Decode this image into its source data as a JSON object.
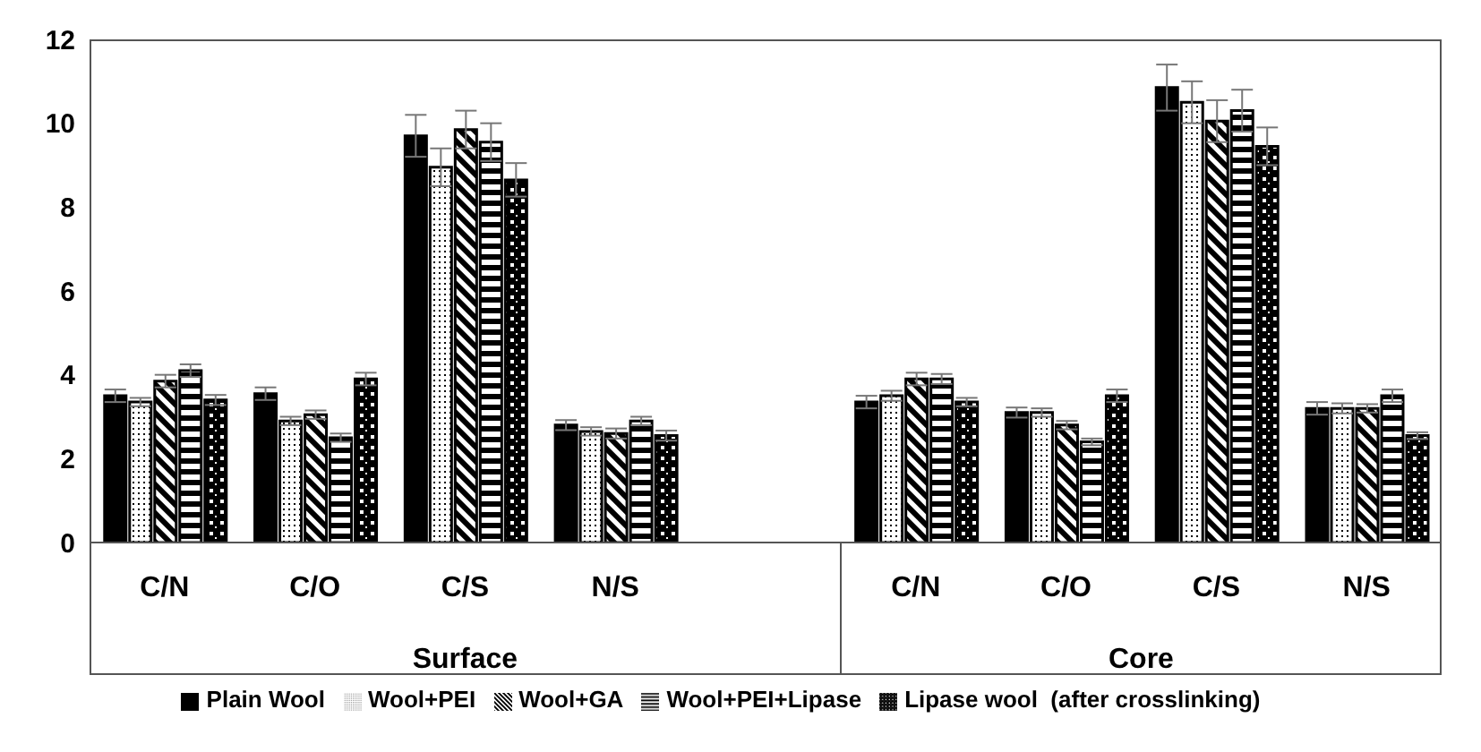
{
  "chart_data": {
    "type": "bar",
    "categories": [
      "C/N",
      "C/O",
      "C/S",
      "N/S",
      null,
      "C/N",
      "C/O",
      "C/S",
      "N/S"
    ],
    "annotations": [
      "Surface",
      "Core"
    ],
    "series": [
      {
        "name": "Plain Wool",
        "color": "#000000",
        "values": [
          3.5,
          3.55,
          9.7,
          2.8,
          null,
          3.35,
          3.1,
          10.85,
          3.2
        ],
        "errors": [
          0.15,
          0.15,
          0.5,
          0.12,
          null,
          0.15,
          0.12,
          0.55,
          0.15
        ]
      },
      {
        "name": "Wool+PEI",
        "color": "#000000",
        "values": [
          3.35,
          2.9,
          8.95,
          2.65,
          null,
          3.5,
          3.1,
          10.5,
          3.2
        ],
        "errors": [
          0.1,
          0.1,
          0.45,
          0.1,
          null,
          0.12,
          0.1,
          0.5,
          0.12
        ]
      },
      {
        "name": "Wool+GA",
        "color": "#000000",
        "values": [
          3.85,
          3.05,
          9.85,
          2.6,
          null,
          3.9,
          2.8,
          10.05,
          3.2
        ],
        "errors": [
          0.15,
          0.1,
          0.45,
          0.12,
          null,
          0.15,
          0.1,
          0.5,
          0.1
        ]
      },
      {
        "name": "Wool+PEI+Lipase",
        "color": "#000000",
        "values": [
          4.1,
          2.5,
          9.55,
          2.9,
          null,
          3.9,
          2.4,
          10.3,
          3.5
        ],
        "errors": [
          0.15,
          0.1,
          0.45,
          0.1,
          null,
          0.12,
          0.08,
          0.5,
          0.15
        ]
      },
      {
        "name": "Lipase wool  (after crosslinking)",
        "color": "#000000",
        "values": [
          3.4,
          3.9,
          8.65,
          2.55,
          null,
          3.35,
          3.5,
          9.45,
          2.55
        ],
        "errors": [
          0.12,
          0.15,
          0.4,
          0.12,
          null,
          0.1,
          0.15,
          0.45,
          0.08
        ]
      }
    ],
    "ylim": [
      0,
      12
    ],
    "yticks": [
      0,
      2,
      4,
      6,
      8,
      10,
      12
    ],
    "grid": false,
    "legend": "bottom"
  }
}
